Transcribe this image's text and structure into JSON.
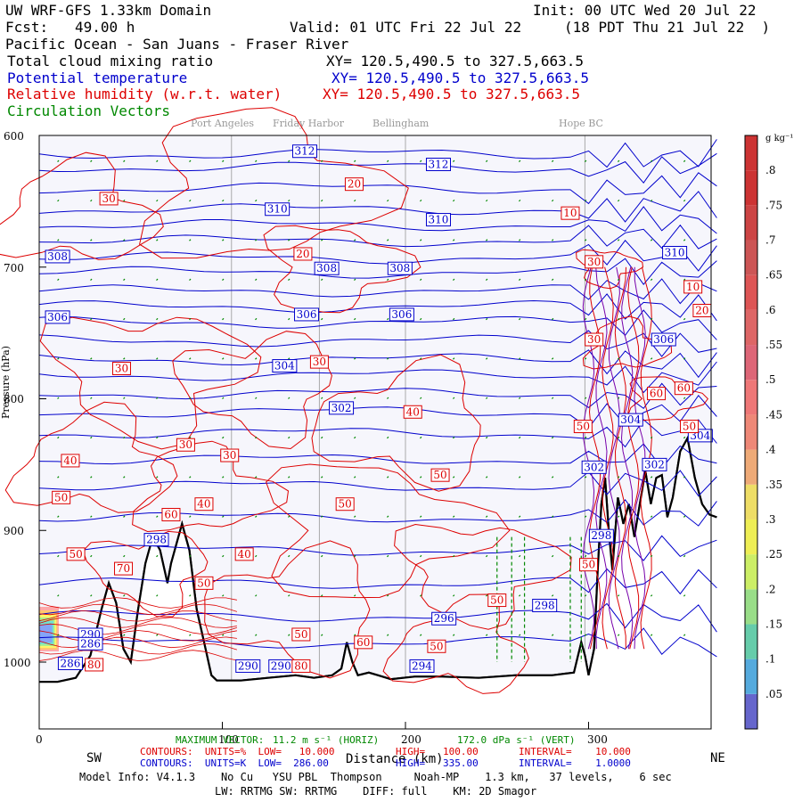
{
  "header": {
    "model": "UW WRF-GFS 1.33km Domain",
    "init": "Init: 00 UTC Wed 20 Jul 22",
    "fcst_label": "Fcst:",
    "fcst_value": "49.00 h",
    "valid": "Valid: 01 UTC Fri 22 Jul 22",
    "local": "(18 PDT Thu 21 Jul 22  )",
    "region": "Pacific Ocean - San Juans - Fraser River",
    "field1": "Total cloud mixing ratio",
    "xy1": "XY= 120.5,490.5 to 327.5,663.5",
    "field2": "Potential temperature",
    "xy2": "XY= 120.5,490.5 to 327.5,663.5",
    "field3": "Relative humidity (w.r.t. water)",
    "xy3": "XY= 120.5,490.5 to 327.5,663.5",
    "field4": "Circulation Vectors"
  },
  "colors": {
    "theta": "#0000cc",
    "rh": "#dd0000",
    "vectors": "#008800",
    "terrain": "#000000",
    "bg": "#f6f6fc"
  },
  "places": [
    "Port Angeles",
    "Friday Harbor",
    "Bellingham",
    "Hope BC"
  ],
  "chart_data": {
    "type": "cross-section",
    "xlabel": "Distance (km)",
    "ylabel": "Pressure (hPa)",
    "xlim": [
      0,
      370
    ],
    "ylim": [
      1050,
      600
    ],
    "x_ticks": [
      "0",
      "100",
      "200",
      "300"
    ],
    "y_ticks": [
      "600",
      "700",
      "800",
      "900",
      "1000"
    ],
    "x_end_labels": {
      "left": "SW",
      "right": "NE"
    },
    "theta_levels": [
      286,
      290,
      294,
      296,
      298,
      302,
      304,
      306,
      308,
      310,
      312
    ],
    "rh_levels": [
      10,
      20,
      30,
      40,
      50,
      60,
      70,
      80,
      90
    ],
    "colorbar": {
      "unit": "g kg⁻¹",
      "labels": [
        ".05",
        ".1",
        ".15",
        ".2",
        ".25",
        ".3",
        ".35",
        ".4",
        ".45",
        ".5",
        ".55",
        ".6",
        ".65",
        ".7",
        ".75",
        ".8"
      ]
    },
    "theta_labels": [
      {
        "text": "312",
        "x": 145,
        "p": 612
      },
      {
        "text": "312",
        "x": 218,
        "p": 622
      },
      {
        "text": "310",
        "x": 130,
        "p": 656
      },
      {
        "text": "310",
        "x": 218,
        "p": 664
      },
      {
        "text": "310",
        "x": 347,
        "p": 689
      },
      {
        "text": "308",
        "x": 10,
        "p": 692
      },
      {
        "text": "308",
        "x": 157,
        "p": 701
      },
      {
        "text": "308",
        "x": 197,
        "p": 701
      },
      {
        "text": "306",
        "x": 10,
        "p": 738
      },
      {
        "text": "306",
        "x": 146,
        "p": 736
      },
      {
        "text": "306",
        "x": 198,
        "p": 736
      },
      {
        "text": "306",
        "x": 341,
        "p": 755
      },
      {
        "text": "304",
        "x": 134,
        "p": 775
      },
      {
        "text": "302",
        "x": 165,
        "p": 807
      },
      {
        "text": "304",
        "x": 323,
        "p": 816
      },
      {
        "text": "304",
        "x": 361,
        "p": 828
      },
      {
        "text": "302",
        "x": 303,
        "p": 852
      },
      {
        "text": "302",
        "x": 336,
        "p": 850
      },
      {
        "text": "298",
        "x": 64,
        "p": 907
      },
      {
        "text": "298",
        "x": 307,
        "p": 904
      },
      {
        "text": "298",
        "x": 276,
        "p": 957
      },
      {
        "text": "296",
        "x": 221,
        "p": 967
      },
      {
        "text": "290",
        "x": 28,
        "p": 979
      },
      {
        "text": "286",
        "x": 28,
        "p": 986
      },
      {
        "text": "286",
        "x": 17,
        "p": 1001
      },
      {
        "text": "290",
        "x": 114,
        "p": 1003
      },
      {
        "text": "290",
        "x": 132,
        "p": 1003
      },
      {
        "text": "294",
        "x": 209,
        "p": 1003
      }
    ],
    "rh_labels": [
      {
        "text": "30",
        "x": 38,
        "p": 648
      },
      {
        "text": "20",
        "x": 172,
        "p": 637
      },
      {
        "text": "10",
        "x": 290,
        "p": 659
      },
      {
        "text": "30",
        "x": 303,
        "p": 696
      },
      {
        "text": "20",
        "x": 144,
        "p": 690
      },
      {
        "text": "10",
        "x": 357,
        "p": 715
      },
      {
        "text": "20",
        "x": 362,
        "p": 733
      },
      {
        "text": "30",
        "x": 303,
        "p": 755
      },
      {
        "text": "30",
        "x": 45,
        "p": 777
      },
      {
        "text": "30",
        "x": 153,
        "p": 772
      },
      {
        "text": "40",
        "x": 204,
        "p": 810
      },
      {
        "text": "60",
        "x": 337,
        "p": 796
      },
      {
        "text": "60",
        "x": 352,
        "p": 792
      },
      {
        "text": "50",
        "x": 297,
        "p": 821
      },
      {
        "text": "30",
        "x": 80,
        "p": 835
      },
      {
        "text": "30",
        "x": 104,
        "p": 843
      },
      {
        "text": "40",
        "x": 17,
        "p": 847
      },
      {
        "text": "50",
        "x": 219,
        "p": 858
      },
      {
        "text": "50",
        "x": 355,
        "p": 821
      },
      {
        "text": "50",
        "x": 12,
        "p": 875
      },
      {
        "text": "50",
        "x": 167,
        "p": 880
      },
      {
        "text": "40",
        "x": 90,
        "p": 880
      },
      {
        "text": "60",
        "x": 72,
        "p": 888
      },
      {
        "text": "40",
        "x": 112,
        "p": 918
      },
      {
        "text": "50",
        "x": 20,
        "p": 918
      },
      {
        "text": "70",
        "x": 46,
        "p": 929
      },
      {
        "text": "50",
        "x": 90,
        "p": 940
      },
      {
        "text": "50",
        "x": 300,
        "p": 926
      },
      {
        "text": "50",
        "x": 250,
        "p": 953
      },
      {
        "text": "50",
        "x": 143,
        "p": 979
      },
      {
        "text": "60",
        "x": 177,
        "p": 985
      },
      {
        "text": "50",
        "x": 217,
        "p": 988
      },
      {
        "text": "80",
        "x": 30,
        "p": 1002
      },
      {
        "text": "80",
        "x": 143,
        "p": 1003
      }
    ]
  },
  "footer": {
    "max_vector_label": "MAXIMUM VECTOR:",
    "max_vector_horiz": "11.2 m s⁻¹ (HORIZ)",
    "max_vector_vert": "172.0 dPa s⁻¹ (VERT)",
    "rh_contours": "CONTOURS:  UNITS=%  LOW=   10.000",
    "rh_high": "HIGH=   100.00",
    "rh_interval": "INTERVAL=    10.000",
    "th_contours": "CONTOURS:  UNITS=K  LOW=  286.00",
    "th_high": "HIGH=   335.00",
    "th_interval": "INTERVAL=    1.0000",
    "model_info": "Model Info: V4.1.3    No Cu   YSU PBL  Thompson     Noah-MP    1.3 km,   37 levels,    6 sec",
    "physics": "LW: RRTMG SW: RRTMG    DIFF: full    KM: 2D Smagor"
  }
}
